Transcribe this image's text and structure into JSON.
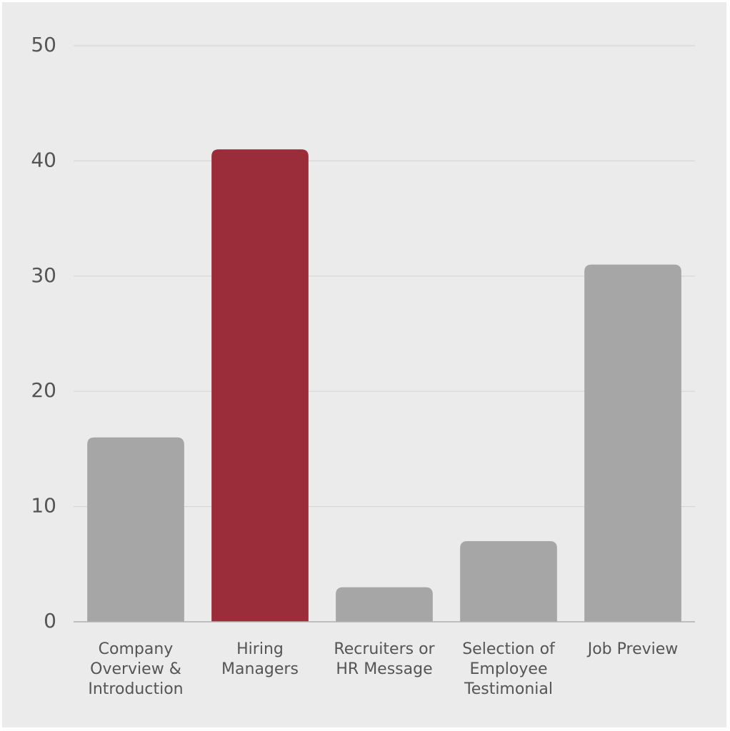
{
  "chart_data": {
    "type": "bar",
    "categories": [
      "Company Overview & Introduction",
      "Hiring Managers",
      "Recruiters or HR Message",
      "Selection of Employee Testimonial",
      "Job Preview"
    ],
    "values": [
      16,
      41,
      3,
      7,
      31
    ],
    "colors": [
      "#a6a6a6",
      "#9b2d3b",
      "#a6a6a6",
      "#a6a6a6",
      "#a6a6a6"
    ],
    "ylim": [
      0,
      50
    ],
    "yticks": [
      0,
      10,
      20,
      30,
      40,
      50
    ],
    "grid": true
  }
}
